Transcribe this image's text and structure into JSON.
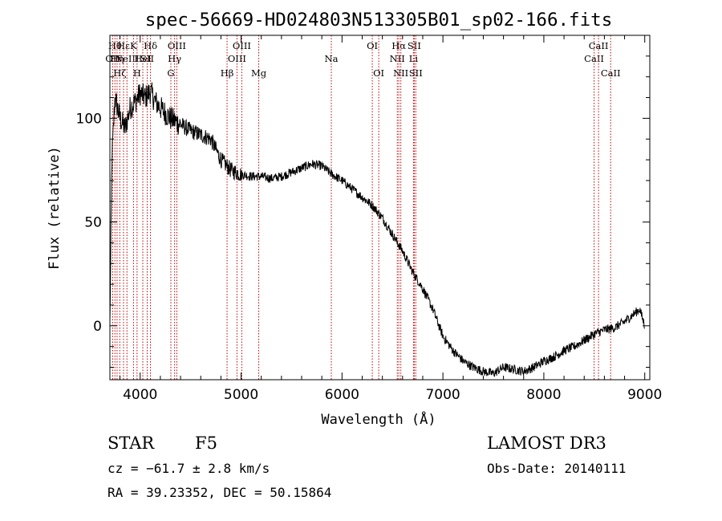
{
  "chart_data": {
    "type": "line",
    "title": "spec-56669-HD024803N513305B01_sp02-166.fits",
    "xlabel": "Wavelength (Å)",
    "ylabel": "Flux (relative)",
    "xlim": [
      3700,
      9050
    ],
    "ylim": [
      -26,
      140
    ],
    "x_ticks": [
      4000,
      5000,
      6000,
      7000,
      8000,
      9000
    ],
    "y_ticks": [
      0,
      50,
      100
    ],
    "grid": false,
    "series": [
      {
        "x": [
          3700,
          3720,
          3750,
          3800,
          3850,
          3900,
          3950,
          4000,
          4050,
          4100,
          4150,
          4200,
          4300,
          4400,
          4500,
          4600,
          4700,
          4800,
          4900,
          5000,
          5100,
          5200,
          5300,
          5400,
          5500,
          5600,
          5700,
          5800,
          5900,
          6000,
          6100,
          6200,
          6300,
          6400,
          6500,
          6600,
          6700,
          6800,
          6900,
          7000,
          7100,
          7200,
          7300,
          7400,
          7500,
          7600,
          7700,
          7800,
          7900,
          8000,
          8100,
          8200,
          8300,
          8400,
          8500,
          8600,
          8700,
          8800,
          8900,
          8950,
          9000
        ],
        "y": [
          0,
          80,
          110,
          100,
          95,
          105,
          108,
          112,
          110,
          113,
          108,
          105,
          100,
          97,
          94,
          92,
          90,
          80,
          75,
          73,
          72,
          72,
          71,
          72,
          74,
          76,
          78,
          77,
          73,
          70,
          66,
          62,
          58,
          52,
          44,
          36,
          26,
          18,
          8,
          -5,
          -12,
          -17,
          -20,
          -22,
          -23,
          -20,
          -21,
          -22,
          -20,
          -17,
          -15,
          -12,
          -10,
          -7,
          -4,
          -2,
          -1,
          2,
          6,
          8,
          0
        ]
      }
    ],
    "lines": [
      {
        "wl": 3728,
        "row": 2,
        "label": "OII"
      },
      {
        "wl": 3750,
        "row": 1,
        "label": "Hθ"
      },
      {
        "wl": 3771,
        "row": 2,
        "label": "Hη"
      },
      {
        "wl": 3798,
        "row": 3,
        "label": "Hζ"
      },
      {
        "wl": 3835,
        "row": 1,
        "label": "Hε"
      },
      {
        "wl": 3869,
        "row": 2,
        "label": "NeIII"
      },
      {
        "wl": 3934,
        "row": 1,
        "label": "K"
      },
      {
        "wl": 3969,
        "row": 3,
        "label": "H"
      },
      {
        "wl": 4026,
        "row": 2,
        "label": "HeI"
      },
      {
        "wl": 4070,
        "row": 2,
        "label": "SII"
      },
      {
        "wl": 4102,
        "row": 1,
        "label": "Hδ"
      },
      {
        "wl": 4304,
        "row": 3,
        "label": "G"
      },
      {
        "wl": 4341,
        "row": 2,
        "label": "Hγ"
      },
      {
        "wl": 4363,
        "row": 1,
        "label": "OIII"
      },
      {
        "wl": 4861,
        "row": 3,
        "label": "Hβ"
      },
      {
        "wl": 4959,
        "row": 2,
        "label": "OIII"
      },
      {
        "wl": 5007,
        "row": 1,
        "label": "OIII"
      },
      {
        "wl": 5175,
        "row": 3,
        "label": "Mg"
      },
      {
        "wl": 5894,
        "row": 2,
        "label": "Na"
      },
      {
        "wl": 6300,
        "row": 1,
        "label": "OI"
      },
      {
        "wl": 6364,
        "row": 3,
        "label": "OI"
      },
      {
        "wl": 6548,
        "row": 2,
        "label": "NII"
      },
      {
        "wl": 6563,
        "row": 1,
        "label": "Hα"
      },
      {
        "wl": 6583,
        "row": 3,
        "label": "NII"
      },
      {
        "wl": 6708,
        "row": 2,
        "label": "Li"
      },
      {
        "wl": 6716,
        "row": 1,
        "label": "SII"
      },
      {
        "wl": 6731,
        "row": 3,
        "label": "SII"
      },
      {
        "wl": 8498,
        "row": 2,
        "label": "CaII"
      },
      {
        "wl": 8542,
        "row": 1,
        "label": "CaII"
      },
      {
        "wl": 8662,
        "row": 3,
        "label": "CaII"
      }
    ]
  },
  "info": {
    "object": "STAR",
    "subclass": "F5",
    "survey": "LAMOST DR3",
    "cz": "cz = −61.7 ± 2.8 km/s",
    "obs_date": "Obs-Date: 20140111",
    "coords": "RA =  39.23352, DEC =  50.15864"
  }
}
